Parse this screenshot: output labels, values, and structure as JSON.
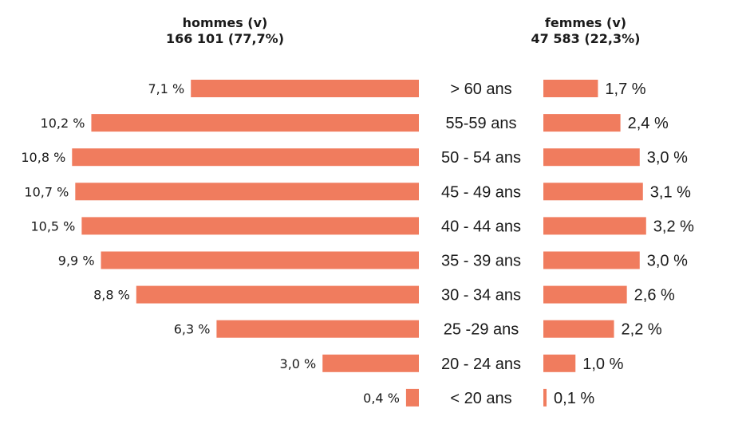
{
  "chart_data": {
    "type": "bar",
    "left_header": {
      "title": "hommes (v)",
      "total": "166 101 (77,7%)"
    },
    "right_header": {
      "title": "femmes (v)",
      "total": "47 583 (22,3%)"
    },
    "categories": [
      "> 60 ans",
      "55-59 ans",
      "50 - 54 ans",
      "45 - 49 ans",
      "40 - 44 ans",
      "35 - 39 ans",
      "30 - 34 ans",
      "25 -29 ans",
      "20 - 24 ans",
      "< 20 ans"
    ],
    "series": [
      {
        "name": "hommes",
        "values": [
          7.1,
          10.2,
          10.8,
          10.7,
          10.5,
          9.9,
          8.8,
          6.3,
          3.0,
          0.4
        ],
        "labels": [
          "7,1 %",
          "10,2 %",
          "10,8 %",
          "10,7 %",
          "10,5 %",
          "9,9 %",
          "8,8 %",
          "6,3 %",
          "3,0 %",
          "0,4 %"
        ]
      },
      {
        "name": "femmes",
        "values": [
          1.7,
          2.4,
          3.0,
          3.1,
          3.2,
          3.0,
          2.6,
          2.2,
          1.0,
          0.1
        ],
        "labels": [
          "1,7 %",
          "2,4 %",
          "3,0 %",
          "3,1 %",
          "3,2 %",
          "3,0 %",
          "2,6 %",
          "2,2 %",
          "1,0 %",
          "0,1 %"
        ]
      }
    ],
    "bar_color": "#f07c5e"
  }
}
